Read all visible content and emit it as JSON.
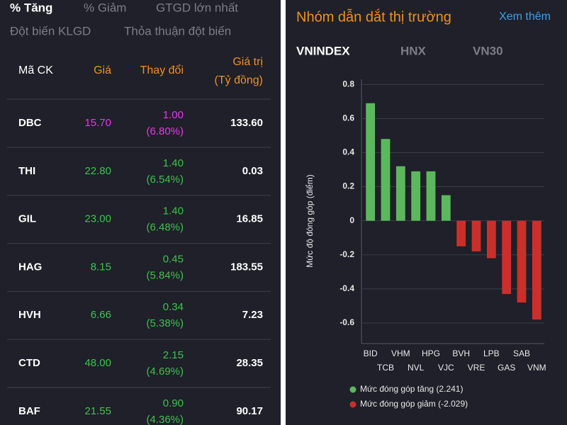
{
  "left_panel": {
    "tabs": [
      "% Tăng",
      "% Giảm",
      "GTGD lớn nhất",
      "Đột biến KLGD",
      "Thỏa thuận đột biến"
    ],
    "table": {
      "headers": [
        "Mã CK",
        "Giá",
        "Thay đổi",
        "Giá trị",
        "(Tỷ đồng)"
      ],
      "rows": [
        {
          "code": "DBC",
          "price": "15.70",
          "change": "1.00",
          "change_pct": "(6.80%)",
          "value": "133.60",
          "color": "#e23ae6"
        },
        {
          "code": "THI",
          "price": "22.80",
          "change": "1.40",
          "change_pct": "(6.54%)",
          "value": "0.03",
          "color": "#3ec24e"
        },
        {
          "code": "GIL",
          "price": "23.00",
          "change": "1.40",
          "change_pct": "(6.48%)",
          "value": "16.85",
          "color": "#3ec24e"
        },
        {
          "code": "HAG",
          "price": "8.15",
          "change": "0.45",
          "change_pct": "(5.84%)",
          "value": "183.55",
          "color": "#3ec24e"
        },
        {
          "code": "HVH",
          "price": "6.66",
          "change": "0.34",
          "change_pct": "(5.38%)",
          "value": "7.23",
          "color": "#3ec24e"
        },
        {
          "code": "CTD",
          "price": "48.00",
          "change": "2.15",
          "change_pct": "(4.69%)",
          "value": "28.35",
          "color": "#3ec24e"
        },
        {
          "code": "BAF",
          "price": "21.55",
          "change": "0.90",
          "change_pct": "(4.36%)",
          "value": "90.17",
          "color": "#3ec24e"
        }
      ]
    }
  },
  "right_panel": {
    "title": "Nhóm dẫn dắt thị trường",
    "link": "Xem thêm",
    "tabs": [
      "VNINDEX",
      "HNX",
      "VN30"
    ]
  },
  "chart_data": {
    "type": "bar",
    "y_label": "Mức độ đóng góp (điểm)",
    "categories": [
      "BID",
      "TCB",
      "VHM",
      "NVL",
      "HPG",
      "VJC",
      "BVH",
      "VRE",
      "LPB",
      "GAS",
      "SAB",
      "VNM"
    ],
    "series": [
      {
        "name": "Mức đóng góp tăng (2.241)",
        "color": "#5cb85c",
        "values": [
          0.69,
          0.48,
          0.32,
          0.29,
          0.29,
          0.15,
          null,
          null,
          null,
          null,
          null,
          null
        ]
      },
      {
        "name": "Mức đóng góp giảm (-2.029)",
        "color": "#c9302c",
        "values": [
          null,
          null,
          null,
          null,
          null,
          null,
          -0.15,
          -0.18,
          -0.22,
          -0.43,
          -0.48,
          -0.58
        ]
      }
    ],
    "ylim": [
      -0.7,
      0.83
    ],
    "yticks": [
      0.8,
      0.6,
      0.4,
      0.2,
      0,
      -0.2,
      -0.4,
      -0.6
    ],
    "grid": true
  }
}
